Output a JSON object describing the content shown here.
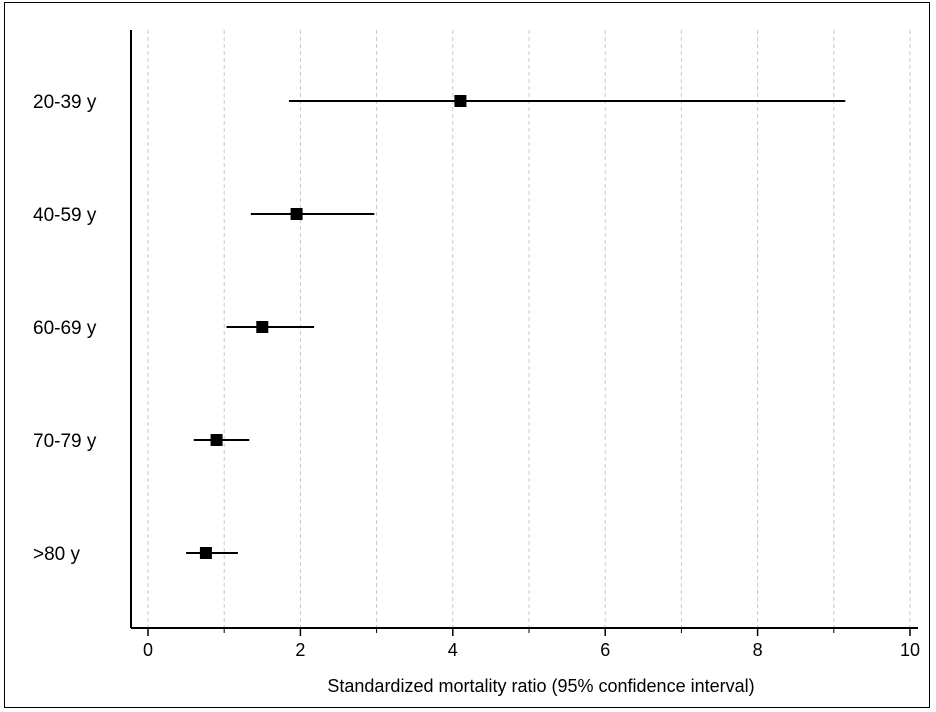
{
  "chart_data": {
    "type": "forest",
    "title": "",
    "xlabel": "Standardized mortality ratio (95% confidence interval)",
    "ylabel": "",
    "xlim": [
      -0.2,
      10.3
    ],
    "x_ticks": [
      0,
      2,
      4,
      6,
      8,
      10
    ],
    "x_minor_gridlines": [
      1,
      3,
      5,
      7,
      9
    ],
    "grid": "vertical dashed light gray",
    "marker": "filled square",
    "color": "#000000",
    "categories": [
      "20-39 y",
      "40-59 y",
      "60-69 y",
      "70-79 y",
      ">80 y"
    ],
    "points": [
      {
        "label": "20-39 y",
        "estimate": 4.1,
        "lower": 1.85,
        "upper": 9.15
      },
      {
        "label": "40-59 y",
        "estimate": 1.95,
        "lower": 1.35,
        "upper": 2.97
      },
      {
        "label": "60-69 y",
        "estimate": 1.5,
        "lower": 1.03,
        "upper": 2.18
      },
      {
        "label": "70-79 y",
        "estimate": 0.9,
        "lower": 0.6,
        "upper": 1.33
      },
      {
        "label": ">80 y",
        "estimate": 0.76,
        "lower": 0.5,
        "upper": 1.18
      }
    ]
  }
}
